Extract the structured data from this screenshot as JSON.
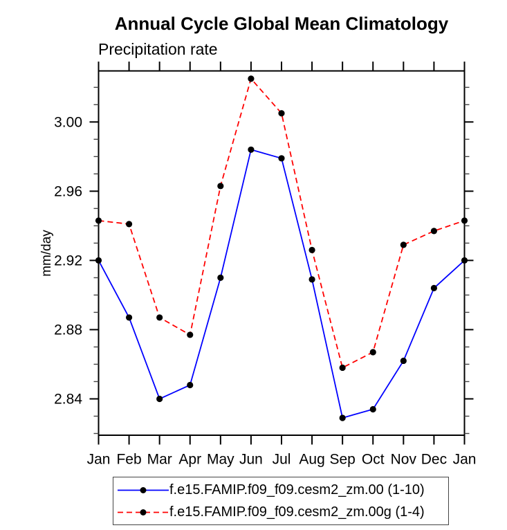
{
  "chart_data": {
    "type": "line",
    "title": "Annual Cycle Global Mean Climatology",
    "subtitle": "Precipitation rate",
    "xlabel": "",
    "ylabel": "mm/day",
    "x_tick_labels": [
      "Jan",
      "Feb",
      "Mar",
      "Apr",
      "May",
      "Jun",
      "Jul",
      "Aug",
      "Sep",
      "Oct",
      "Nov",
      "Dec",
      "Jan"
    ],
    "y_major_ticks": [
      2.84,
      2.88,
      2.92,
      2.96,
      3.0
    ],
    "y_tick_labels": [
      "2.84",
      "2.88",
      "2.92",
      "2.96",
      "3.00"
    ],
    "y_minor_tick_step": 0.01,
    "ylim": [
      2.819,
      3.0295
    ],
    "grid": false,
    "legend_position": "bottom-center",
    "colors": {
      "axis": "#000000",
      "text": "#000000",
      "marker": "#000000",
      "series1": "#0000ff",
      "series2": "#ff0000"
    },
    "series": [
      {
        "name": "f.e15.FAMIP.f09_f09.cesm2_zm.00 (1-10)",
        "color": "#0000ff",
        "line_style": "solid",
        "marker": "filled-circle",
        "values": [
          2.92,
          2.887,
          2.84,
          2.848,
          2.91,
          2.984,
          2.979,
          2.909,
          2.829,
          2.834,
          2.862,
          2.904,
          2.92
        ]
      },
      {
        "name": "f.e15.FAMIP.f09_f09.cesm2_zm.00g (1-4)",
        "color": "#ff0000",
        "line_style": "dashed",
        "marker": "filled-circle",
        "values": [
          2.943,
          2.941,
          2.887,
          2.877,
          2.963,
          3.025,
          3.005,
          2.926,
          2.858,
          2.867,
          2.929,
          2.937,
          2.943
        ]
      }
    ]
  }
}
